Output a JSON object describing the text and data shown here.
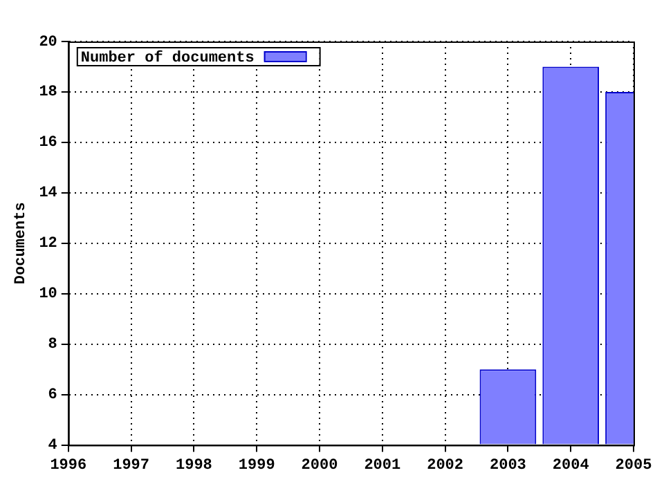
{
  "chart_data": {
    "type": "bar",
    "ylabel": "Documents",
    "x": [
      2003,
      2004,
      2005
    ],
    "series": [
      {
        "name": "Number of documents",
        "color": "#7f7fff",
        "values": [
          7,
          19,
          18
        ]
      }
    ],
    "xlim": [
      1996,
      2005
    ],
    "xticks": [
      1996,
      1997,
      1998,
      1999,
      2000,
      2001,
      2002,
      2003,
      2004,
      2005
    ],
    "ylim": [
      4,
      20
    ],
    "yticks": [
      4,
      6,
      8,
      10,
      12,
      14,
      16,
      18,
      20
    ],
    "grid": true,
    "legend": "top left"
  }
}
